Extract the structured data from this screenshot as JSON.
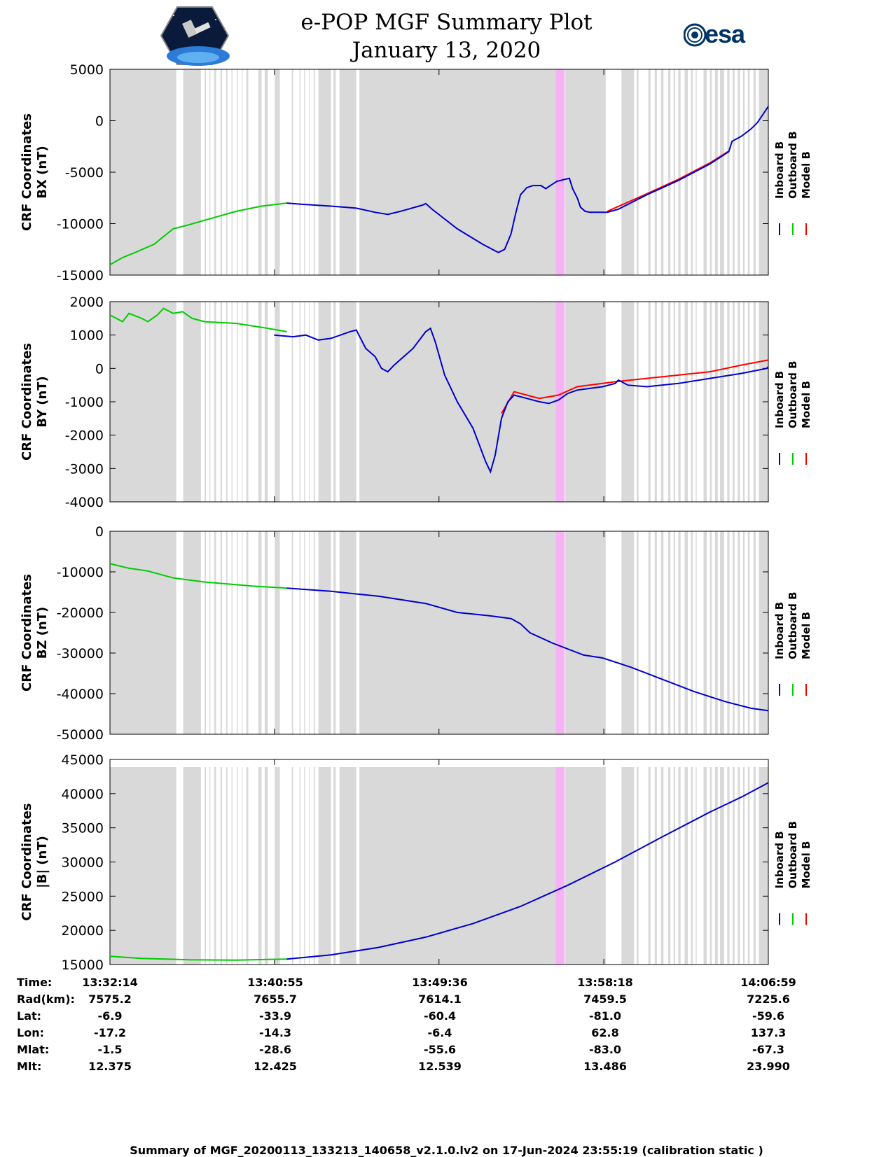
{
  "title": {
    "line1": "e-POP MGF Summary Plot",
    "line2": "January 13, 2020"
  },
  "logos": {
    "mission": "cassiope-mission-logo",
    "esa_text": "esa"
  },
  "legend": [
    "Inboard B",
    "Outboard B",
    "Model B"
  ],
  "colors": {
    "inboard": "#0000cc",
    "outboard": "#00cc00",
    "model": "#ff0000",
    "data_gap": "#d9d9d9",
    "highlight": "#f5b3f5"
  },
  "chart_data": [
    {
      "type": "line",
      "ylabel": [
        "CRF Coordinates",
        "BX (nT)"
      ],
      "ylim": [
        -15000,
        5000
      ],
      "yticks": [
        5000,
        0,
        -5000,
        -10000,
        -15000
      ],
      "xlim": [
        0,
        2085
      ],
      "series": [
        {
          "name": "Inboard B",
          "points": [
            [
              560,
              -8000
            ],
            [
              600,
              -8100
            ],
            [
              700,
              -8300
            ],
            [
              780,
              -8500
            ],
            [
              840,
              -8900
            ],
            [
              880,
              -9100
            ],
            [
              920,
              -8800
            ],
            [
              990,
              -8200
            ],
            [
              1000,
              -8050
            ],
            [
              1020,
              -8600
            ],
            [
              1100,
              -10500
            ],
            [
              1180,
              -12000
            ],
            [
              1230,
              -12800
            ],
            [
              1250,
              -12500
            ],
            [
              1270,
              -11000
            ],
            [
              1285,
              -9000
            ],
            [
              1300,
              -7200
            ],
            [
              1320,
              -6500
            ],
            [
              1340,
              -6300
            ],
            [
              1365,
              -6300
            ],
            [
              1380,
              -6600
            ],
            [
              1395,
              -6300
            ],
            [
              1415,
              -5900
            ],
            [
              1440,
              -5700
            ],
            [
              1455,
              -5600
            ],
            [
              1465,
              -6600
            ],
            [
              1480,
              -7500
            ],
            [
              1490,
              -8400
            ],
            [
              1505,
              -8800
            ],
            [
              1520,
              -8900
            ],
            [
              1575,
              -8900
            ],
            [
              1610,
              -8600
            ],
            [
              1700,
              -7200
            ],
            [
              1800,
              -5800
            ],
            [
              1900,
              -4200
            ],
            [
              1960,
              -3000
            ],
            [
              1970,
              -2000
            ],
            [
              2000,
              -1500
            ],
            [
              2030,
              -800
            ],
            [
              2050,
              -200
            ],
            [
              2070,
              700
            ],
            [
              2085,
              1400
            ]
          ]
        },
        {
          "name": "Outboard B",
          "points": [
            [
              0,
              -14000
            ],
            [
              40,
              -13300
            ],
            [
              80,
              -12800
            ],
            [
              140,
              -12000
            ],
            [
              200,
              -10500
            ],
            [
              240,
              -10200
            ],
            [
              320,
              -9500
            ],
            [
              400,
              -8800
            ],
            [
              480,
              -8300
            ],
            [
              560,
              -8000
            ]
          ]
        },
        {
          "name": "Model B",
          "points": [
            [
              1575,
              -8800
            ],
            [
              1700,
              -7100
            ],
            [
              1800,
              -5700
            ],
            [
              1900,
              -4100
            ],
            [
              1960,
              -2950
            ]
          ]
        }
      ]
    },
    {
      "type": "line",
      "ylabel": [
        "CRF Coordinates",
        "BY (nT)"
      ],
      "ylim": [
        -4000,
        2000
      ],
      "yticks": [
        2000,
        1000,
        0,
        -1000,
        -2000,
        -3000,
        -4000
      ],
      "xlim": [
        0,
        2085
      ],
      "series": [
        {
          "name": "Inboard B",
          "points": [
            [
              520,
              1000
            ],
            [
              580,
              950
            ],
            [
              620,
              1000
            ],
            [
              660,
              850
            ],
            [
              700,
              900
            ],
            [
              760,
              1100
            ],
            [
              780,
              1150
            ],
            [
              810,
              600
            ],
            [
              840,
              350
            ],
            [
              860,
              0
            ],
            [
              880,
              -100
            ],
            [
              900,
              100
            ],
            [
              960,
              600
            ],
            [
              1000,
              1100
            ],
            [
              1015,
              1200
            ],
            [
              1030,
              800
            ],
            [
              1060,
              -200
            ],
            [
              1100,
              -1000
            ],
            [
              1150,
              -1800
            ],
            [
              1190,
              -2800
            ],
            [
              1205,
              -3100
            ],
            [
              1220,
              -2600
            ],
            [
              1240,
              -1500
            ],
            [
              1260,
              -1000
            ],
            [
              1280,
              -800
            ],
            [
              1320,
              -900
            ],
            [
              1360,
              -1000
            ],
            [
              1390,
              -1050
            ],
            [
              1420,
              -950
            ],
            [
              1450,
              -750
            ],
            [
              1480,
              -650
            ],
            [
              1520,
              -600
            ],
            [
              1560,
              -550
            ],
            [
              1600,
              -450
            ],
            [
              1610,
              -350
            ],
            [
              1640,
              -500
            ],
            [
              1700,
              -550
            ],
            [
              1800,
              -450
            ],
            [
              1900,
              -300
            ],
            [
              2000,
              -150
            ],
            [
              2080,
              0
            ],
            [
              2085,
              50
            ]
          ]
        },
        {
          "name": "Outboard B",
          "points": [
            [
              0,
              1600
            ],
            [
              20,
              1500
            ],
            [
              40,
              1400
            ],
            [
              60,
              1650
            ],
            [
              100,
              1500
            ],
            [
              120,
              1400
            ],
            [
              150,
              1600
            ],
            [
              170,
              1800
            ],
            [
              200,
              1650
            ],
            [
              230,
              1700
            ],
            [
              260,
              1500
            ],
            [
              300,
              1400
            ],
            [
              400,
              1350
            ],
            [
              500,
              1200
            ],
            [
              560,
              1100
            ]
          ]
        },
        {
          "name": "Model B",
          "points": [
            [
              1240,
              -1350
            ],
            [
              1280,
              -700
            ],
            [
              1320,
              -800
            ],
            [
              1360,
              -900
            ],
            [
              1420,
              -800
            ],
            [
              1480,
              -550
            ],
            [
              1600,
              -400
            ],
            [
              1700,
              -300
            ],
            [
              1800,
              -200
            ],
            [
              1900,
              -100
            ],
            [
              2000,
              100
            ],
            [
              2085,
              250
            ]
          ]
        }
      ]
    },
    {
      "type": "line",
      "ylabel": [
        "CRF Coordinates",
        "BZ (nT)"
      ],
      "ylim": [
        -50000,
        0
      ],
      "yticks": [
        0,
        -10000,
        -20000,
        -30000,
        -40000,
        -50000
      ],
      "xlim": [
        0,
        2085
      ],
      "series": [
        {
          "name": "Inboard B",
          "points": [
            [
              560,
              -14000
            ],
            [
              700,
              -14800
            ],
            [
              850,
              -16000
            ],
            [
              1000,
              -17800
            ],
            [
              1100,
              -20000
            ],
            [
              1200,
              -20800
            ],
            [
              1270,
              -21500
            ],
            [
              1300,
              -22800
            ],
            [
              1330,
              -25000
            ],
            [
              1400,
              -27500
            ],
            [
              1500,
              -30500
            ],
            [
              1560,
              -31200
            ],
            [
              1650,
              -33500
            ],
            [
              1750,
              -36500
            ],
            [
              1850,
              -39500
            ],
            [
              1950,
              -42000
            ],
            [
              2030,
              -43600
            ],
            [
              2085,
              -44200
            ]
          ]
        },
        {
          "name": "Outboard B",
          "points": [
            [
              0,
              -8000
            ],
            [
              60,
              -9100
            ],
            [
              120,
              -9800
            ],
            [
              200,
              -11500
            ],
            [
              300,
              -12500
            ],
            [
              450,
              -13500
            ],
            [
              560,
              -14000
            ]
          ]
        },
        {
          "name": "Model B",
          "points": []
        }
      ]
    },
    {
      "type": "line",
      "ylabel": [
        "CRF Coordinates",
        "|B| (nT)"
      ],
      "ylim": [
        15000,
        45000
      ],
      "yticks": [
        45000,
        40000,
        35000,
        30000,
        25000,
        20000,
        15000
      ],
      "xlim": [
        0,
        2085
      ],
      "series": [
        {
          "name": "Inboard B",
          "points": [
            [
              560,
              15800
            ],
            [
              700,
              16400
            ],
            [
              850,
              17500
            ],
            [
              1000,
              19000
            ],
            [
              1150,
              21000
            ],
            [
              1300,
              23500
            ],
            [
              1450,
              26600
            ],
            [
              1600,
              30000
            ],
            [
              1750,
              33700
            ],
            [
              1900,
              37300
            ],
            [
              2000,
              39500
            ],
            [
              2085,
              41600
            ]
          ]
        },
        {
          "name": "Outboard B",
          "points": [
            [
              0,
              16200
            ],
            [
              100,
              15900
            ],
            [
              250,
              15700
            ],
            [
              400,
              15650
            ],
            [
              560,
              15800
            ]
          ]
        },
        {
          "name": "Model B",
          "points": []
        }
      ]
    }
  ],
  "gaps": [
    [
      0,
      210
    ],
    [
      232,
      288
    ],
    [
      300,
      304
    ],
    [
      315,
      318
    ],
    [
      330,
      336
    ],
    [
      350,
      355
    ],
    [
      368,
      372
    ],
    [
      385,
      388
    ],
    [
      402,
      405
    ],
    [
      418,
      420
    ],
    [
      432,
      438
    ],
    [
      470,
      480
    ],
    [
      490,
      500
    ],
    [
      522,
      538
    ],
    [
      576,
      580
    ],
    [
      600,
      603
    ],
    [
      615,
      618
    ],
    [
      630,
      632
    ],
    [
      645,
      649
    ],
    [
      660,
      700
    ],
    [
      708,
      715
    ],
    [
      727,
      780
    ],
    [
      790,
      1380
    ],
    [
      1380,
      1402
    ],
    [
      1402,
      1432
    ],
    [
      1442,
      1570
    ],
    [
      1620,
      1660
    ],
    [
      1668,
      1674
    ],
    [
      1705,
      1712
    ],
    [
      1725,
      1732
    ],
    [
      1745,
      1753
    ],
    [
      1768,
      1775
    ],
    [
      1785,
      1790
    ],
    [
      1800,
      1807
    ],
    [
      1820,
      1830
    ],
    [
      1840,
      1846
    ],
    [
      1855,
      1858
    ],
    [
      1880,
      1890
    ],
    [
      1900,
      1906
    ],
    [
      1916,
      1925
    ],
    [
      1932,
      1945
    ],
    [
      1955,
      1962
    ],
    [
      1972,
      1978
    ],
    [
      1988,
      1995
    ],
    [
      2005,
      2010
    ],
    [
      2020,
      2026
    ],
    [
      2038,
      2045
    ],
    [
      2055,
      2085
    ]
  ],
  "highlight": [
    1412,
    1440
  ],
  "x_ticks": [
    "13:32:14",
    "13:40:55",
    "13:49:36",
    "13:58:18",
    "14:06:59"
  ],
  "x_tick_values": [
    0,
    521,
    1042,
    1564,
    2085
  ],
  "info": {
    "labels": [
      "Time:",
      "Rad(km):",
      "Lat:",
      "Lon:",
      "Mlat:",
      "Mlt:"
    ],
    "columns": [
      [
        "13:32:14",
        "7575.2",
        "-6.9",
        "-17.2",
        "-1.5",
        "12.375"
      ],
      [
        "13:40:55",
        "7655.7",
        "-33.9",
        "-14.3",
        "-28.6",
        "12.425"
      ],
      [
        "13:49:36",
        "7614.1",
        "-60.4",
        "-6.4",
        "-55.6",
        "12.539"
      ],
      [
        "13:58:18",
        "7459.5",
        "-81.0",
        "62.8",
        "-83.0",
        "13.486"
      ],
      [
        "14:06:59",
        "7225.6",
        "-59.6",
        "137.3",
        "-67.3",
        "23.990"
      ]
    ]
  },
  "footer": "Summary of MGF_20200113_133213_140658_v2.1.0.lv2 on 17-Jun-2024 23:55:19 (calibration static )"
}
